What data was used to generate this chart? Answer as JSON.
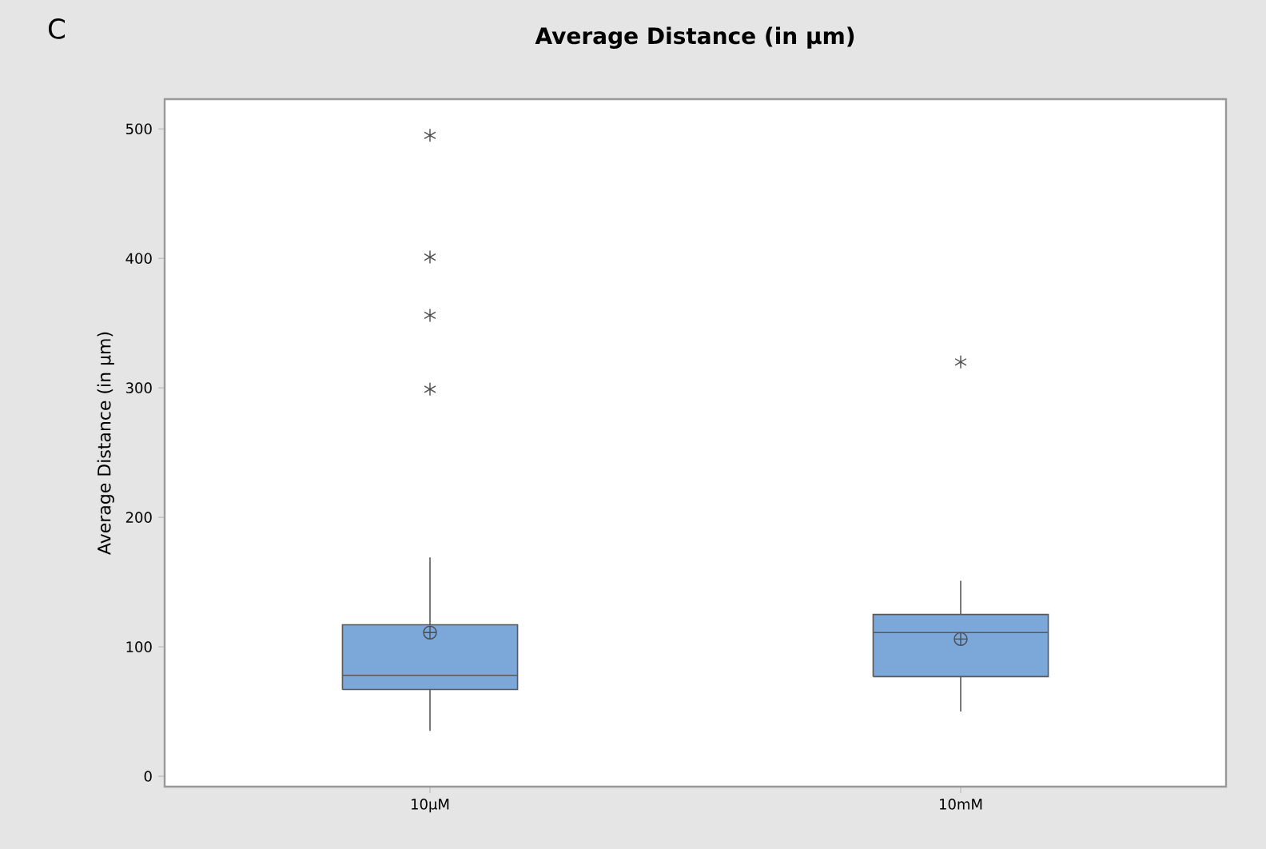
{
  "chart_data": {
    "type": "box",
    "title": "Average Distance (in μm)",
    "ylabel": "Average Distance (in μm)",
    "annotations": [
      "C"
    ],
    "categories": [
      "10μM",
      "10mM"
    ],
    "color": "#7ba7d9",
    "boxes": [
      {
        "low": 35,
        "q1": 67,
        "median": 78,
        "q3": 117,
        "high": 169,
        "mean": 111,
        "outliers": [
          299,
          356,
          401,
          495
        ]
      },
      {
        "low": 50,
        "q1": 77,
        "median": 111,
        "q3": 125,
        "high": 151,
        "mean": 106,
        "outliers": [
          320
        ]
      }
    ],
    "ylim": [
      -8,
      523
    ],
    "yticks": [
      0,
      100,
      200,
      300,
      400,
      500
    ]
  }
}
